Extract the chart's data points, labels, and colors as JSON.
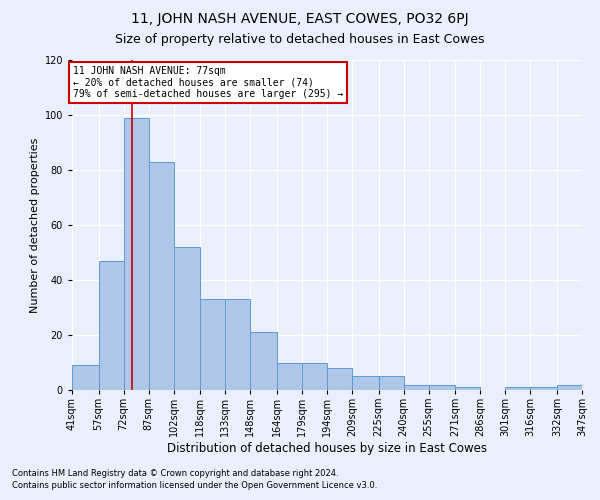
{
  "title": "11, JOHN NASH AVENUE, EAST COWES, PO32 6PJ",
  "subtitle": "Size of property relative to detached houses in East Cowes",
  "xlabel": "Distribution of detached houses by size in East Cowes",
  "ylabel": "Number of detached properties",
  "footer_line1": "Contains HM Land Registry data © Crown copyright and database right 2024.",
  "footer_line2": "Contains public sector information licensed under the Open Government Licence v3.0.",
  "bins": [
    41,
    57,
    72,
    87,
    102,
    118,
    133,
    148,
    164,
    179,
    194,
    209,
    225,
    240,
    255,
    271,
    286,
    301,
    316,
    332,
    347
  ],
  "bin_labels": [
    "41sqm",
    "57sqm",
    "72sqm",
    "87sqm",
    "102sqm",
    "118sqm",
    "133sqm",
    "148sqm",
    "164sqm",
    "179sqm",
    "194sqm",
    "209sqm",
    "225sqm",
    "240sqm",
    "255sqm",
    "271sqm",
    "286sqm",
    "301sqm",
    "316sqm",
    "332sqm",
    "347sqm"
  ],
  "bar_values": [
    9,
    47,
    99,
    83,
    52,
    33,
    33,
    21,
    10,
    10,
    8,
    5,
    5,
    2,
    2,
    1,
    0,
    1,
    1,
    2
  ],
  "bar_color": "#aec6e8",
  "bar_edge_color": "#5b9bd5",
  "vline_x": 77,
  "vline_color": "#cc0000",
  "ylim": [
    0,
    120
  ],
  "yticks": [
    0,
    20,
    40,
    60,
    80,
    100,
    120
  ],
  "annotation_text": "11 JOHN NASH AVENUE: 77sqm\n← 20% of detached houses are smaller (74)\n79% of semi-detached houses are larger (295) →",
  "annotation_box_color": "#ffffff",
  "annotation_box_edgecolor": "#cc0000",
  "bg_color": "#eaf0fb",
  "plot_bg_color": "#eaf0fb",
  "grid_color": "#ffffff",
  "title_fontsize": 10,
  "subtitle_fontsize": 9,
  "ylabel_fontsize": 8,
  "xlabel_fontsize": 8.5,
  "tick_fontsize": 7,
  "annot_fontsize": 7,
  "footer_fontsize": 6
}
